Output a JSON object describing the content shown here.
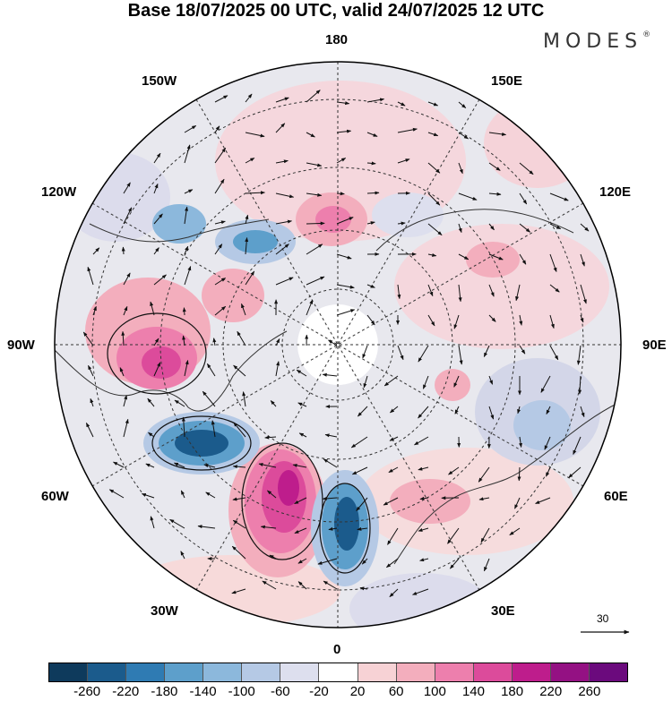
{
  "title": "Base 18/07/2025 00 UTC, valid 24/07/2025 12 UTC",
  "brand": "MODES",
  "longitude_labels": {
    "top": "180",
    "bottom": "0",
    "left": "90W",
    "right": "90E",
    "nw_upper": "150W",
    "nw_lower": "120W",
    "ne_upper": "150E",
    "ne_lower": "120E",
    "sw_upper": "60W",
    "sw_lower": "30W",
    "se_upper": "60E",
    "se_lower": "30E"
  },
  "reference_vector": {
    "label": "30"
  },
  "colorbar": {
    "colors": [
      "#0e3a5c",
      "#1b5b8c",
      "#2f7bb3",
      "#5d9fcb",
      "#8cb8dc",
      "#b5c9e5",
      "#dddfee",
      "#ffffff",
      "#f7d2d5",
      "#f3aebd",
      "#ed7fad",
      "#dc4b9b",
      "#be1d8c",
      "#941183",
      "#6b0a7d"
    ],
    "tick_labels": [
      "-260",
      "-220",
      "-180",
      "-140",
      "-100",
      "-60",
      "-20",
      "20",
      "60",
      "100",
      "140",
      "180",
      "220",
      "260"
    ]
  }
}
